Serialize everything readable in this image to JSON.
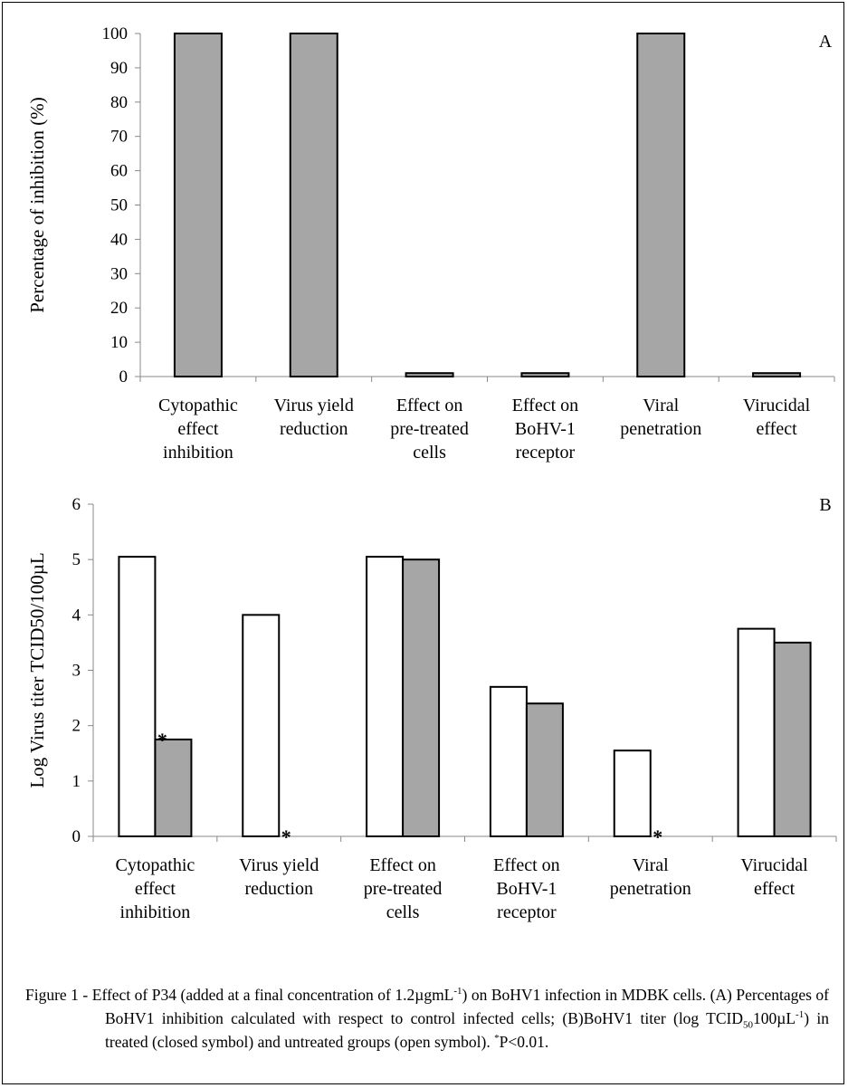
{
  "chart_data": [
    {
      "type": "bar",
      "panel_label": "A",
      "ylabel": "Percentage of inhibition  (%)",
      "ylim": [
        0,
        100
      ],
      "yticks": [
        0,
        10,
        20,
        30,
        40,
        50,
        60,
        70,
        80,
        90,
        100
      ],
      "categories": [
        [
          "Cytopathic",
          "effect",
          "inhibition"
        ],
        [
          "Virus yield",
          "reduction"
        ],
        [
          "Effect on",
          "pre-treated",
          "cells"
        ],
        [
          "Effect on",
          "BoHV-1",
          "receptor"
        ],
        [
          "Viral",
          "penetration"
        ],
        [
          "Virucidal",
          "effect"
        ]
      ],
      "series": [
        {
          "color": "#a6a6a6",
          "values": [
            100,
            100,
            1,
            1,
            100,
            1
          ]
        }
      ],
      "grid": false
    },
    {
      "type": "bar",
      "panel_label": "B",
      "ylabel": "Log Virus titer TCID50/100µL",
      "ylim": [
        0,
        6
      ],
      "yticks": [
        0,
        1,
        2,
        3,
        4,
        5,
        6
      ],
      "categories": [
        [
          "Cytopathic",
          "effect",
          "inhibition"
        ],
        [
          "Virus yield",
          "reduction"
        ],
        [
          "Effect on",
          "pre-treated",
          "cells"
        ],
        [
          "Effect on",
          "BoHV-1",
          "receptor"
        ],
        [
          "Viral",
          "penetration"
        ],
        [
          "Virucidal",
          "effect"
        ]
      ],
      "series": [
        {
          "color": "#ffffff",
          "values": [
            5.05,
            4.0,
            5.05,
            2.7,
            1.55,
            3.75
          ]
        },
        {
          "color": "#a6a6a6",
          "values": [
            1.75,
            0,
            5.0,
            2.4,
            0,
            3.5
          ]
        }
      ],
      "significance_markers": [
        {
          "category_index": 0,
          "series_index": 1,
          "text": "*"
        },
        {
          "category_index": 1,
          "series_index": 1,
          "text": "*"
        },
        {
          "category_index": 4,
          "series_index": 1,
          "text": "*"
        }
      ],
      "grid": false
    }
  ],
  "caption": {
    "lead": "Figure 1 - Effect of P34 (added at a final concentration of 1.2µgmL",
    "sup1": "-1",
    "mid1": ") on BoHV1 infection in MDBK cells. (A) Percentages of BoHV1 inhibition calculated with respect to control infected cells; (B)BoHV1 titer (log TCID",
    "sub1": "50",
    "mid2": "100µL",
    "sup2": "-1",
    "mid3": ") in treated (closed symbol) and untreated groups (open symbol). ",
    "sup3": "*",
    "tail": "P<0.01."
  }
}
